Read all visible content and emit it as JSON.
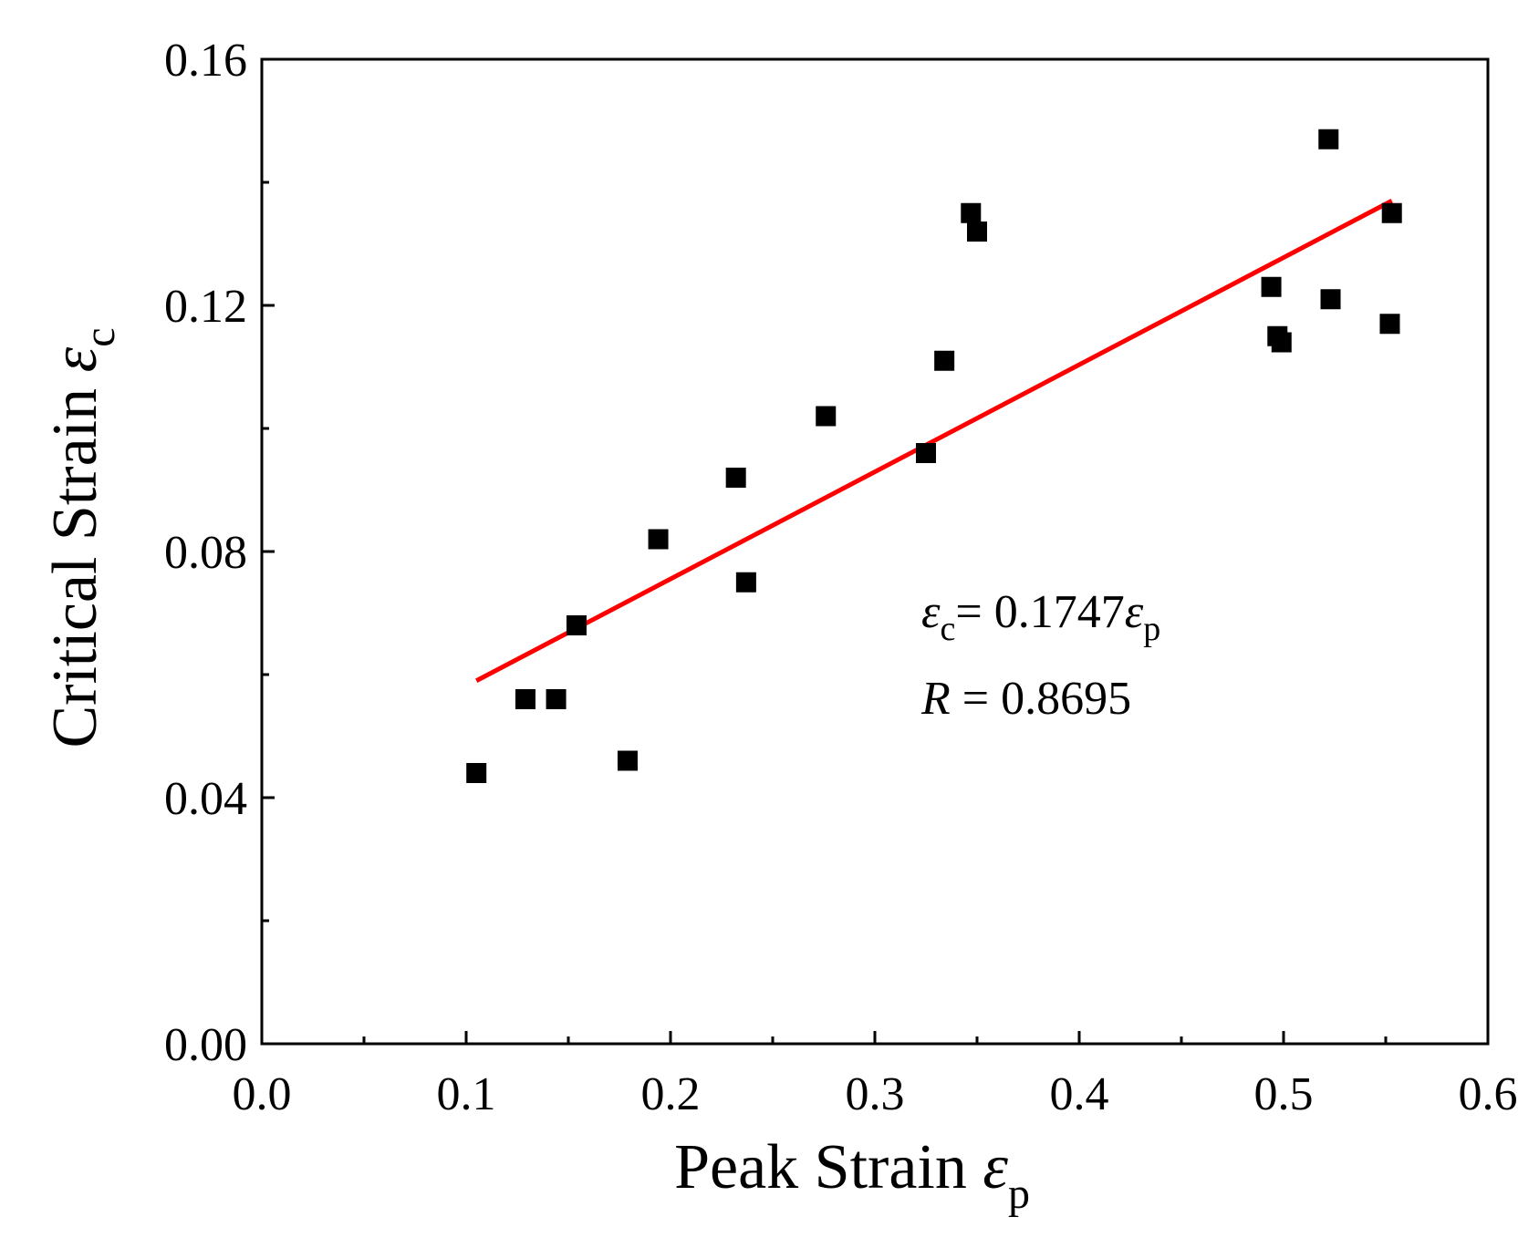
{
  "chart_data": {
    "type": "scatter",
    "title": "",
    "xlabel": {
      "text": "Peak Strain ",
      "symbol": "ε",
      "subscript": "p"
    },
    "ylabel": {
      "text": "Critical Strain ",
      "symbol": "ε",
      "subscript": "c"
    },
    "xlim": [
      0.0,
      0.6
    ],
    "ylim": [
      0.0,
      0.16
    ],
    "x_ticks": [
      0.0,
      0.1,
      0.2,
      0.3,
      0.4,
      0.5,
      0.6
    ],
    "x_tick_labels": [
      "0.0",
      "0.1",
      "0.2",
      "0.3",
      "0.4",
      "0.5",
      "0.6"
    ],
    "x_minor_ticks": [
      0.05,
      0.15,
      0.25,
      0.35,
      0.45,
      0.55
    ],
    "y_ticks": [
      0.0,
      0.04,
      0.08,
      0.12,
      0.16
    ],
    "y_tick_labels": [
      "0.00",
      "0.04",
      "0.08",
      "0.12",
      "0.16"
    ],
    "y_minor_ticks": [
      0.02,
      0.06,
      0.1,
      0.14
    ],
    "grid": false,
    "legend": "none",
    "series": [
      {
        "name": "data",
        "marker": "square",
        "color": "#000000",
        "x": [
          0.105,
          0.129,
          0.144,
          0.154,
          0.179,
          0.194,
          0.232,
          0.237,
          0.276,
          0.325,
          0.334,
          0.347,
          0.35,
          0.494,
          0.497,
          0.499,
          0.522,
          0.523,
          0.552,
          0.553
        ],
        "y": [
          0.044,
          0.056,
          0.056,
          0.068,
          0.046,
          0.082,
          0.092,
          0.075,
          0.102,
          0.096,
          0.111,
          0.135,
          0.132,
          0.123,
          0.115,
          0.114,
          0.147,
          0.121,
          0.117,
          0.135
        ]
      }
    ],
    "fit": {
      "name": "linear fit",
      "color": "#ff0000",
      "x": [
        0.105,
        0.553
      ],
      "y": [
        0.059,
        0.137
      ]
    },
    "annotations": {
      "equation": {
        "lhs_symbol": "ε",
        "lhs_sub": "c",
        "mid": "= 0.1747",
        "rhs_symbol": "ε",
        "rhs_sub": "p"
      },
      "r_value": {
        "symbol": "R",
        "text": " = 0.8695"
      }
    }
  }
}
